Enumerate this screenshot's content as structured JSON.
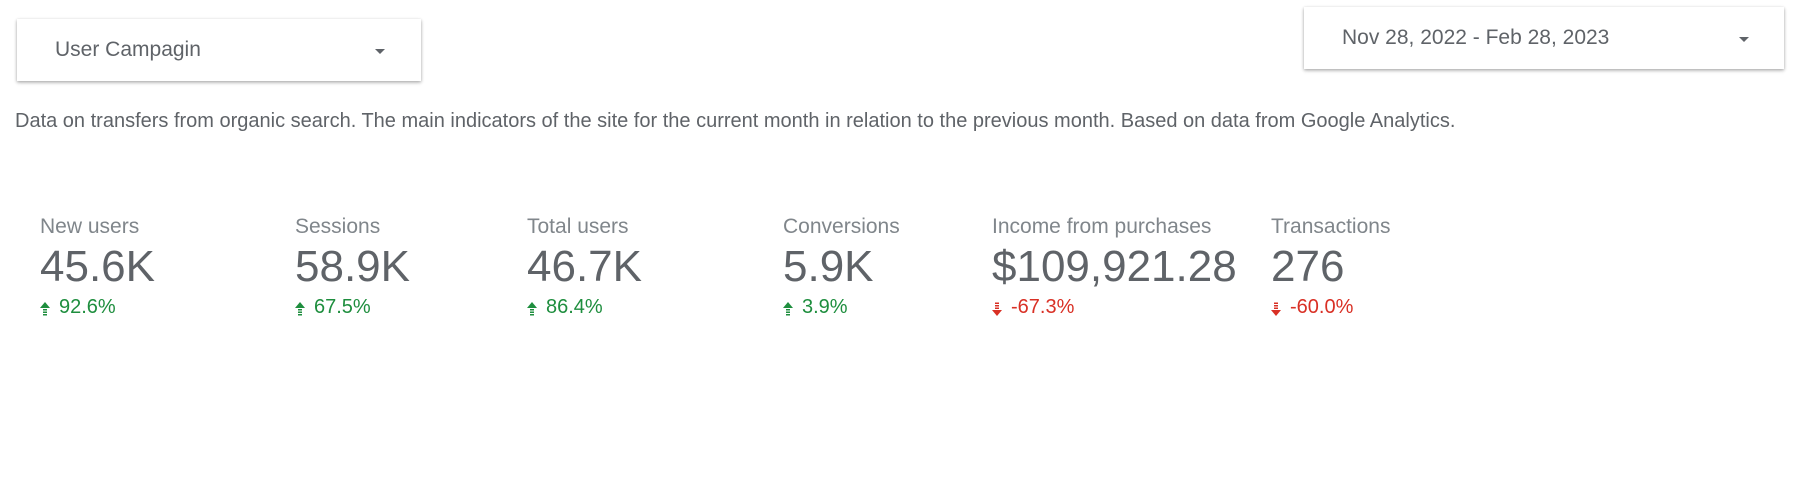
{
  "campaign_filter": {
    "label": "User Campagin"
  },
  "date_range": {
    "label": "Nov 28, 2022 - Feb 28, 2023"
  },
  "description": "Data on transfers from organic search. The main indicators of the site for the current month in relation to the previous month. Based on data from Google Analytics.",
  "metrics": [
    {
      "label": "New users",
      "value": "45.6K",
      "change": "92.6%",
      "direction": "up"
    },
    {
      "label": "Sessions",
      "value": "58.9K",
      "change": "67.5%",
      "direction": "up"
    },
    {
      "label": "Total users",
      "value": "46.7K",
      "change": "86.4%",
      "direction": "up"
    },
    {
      "label": "Conversions",
      "value": "5.9K",
      "change": "3.9%",
      "direction": "up"
    },
    {
      "label": "Income from purchases",
      "value": "$109,921.28",
      "change": "-67.3%",
      "direction": "down"
    },
    {
      "label": "Transactions",
      "value": "276",
      "change": "-60.0%",
      "direction": "down"
    }
  ],
  "colors": {
    "positive": "#1e8e3e",
    "negative": "#d93025",
    "text": "#5f6368",
    "label": "#80868b"
  },
  "icons": {
    "up": "arrow-up-icon",
    "down": "arrow-down-icon",
    "dropdown": "caret-down-icon"
  }
}
